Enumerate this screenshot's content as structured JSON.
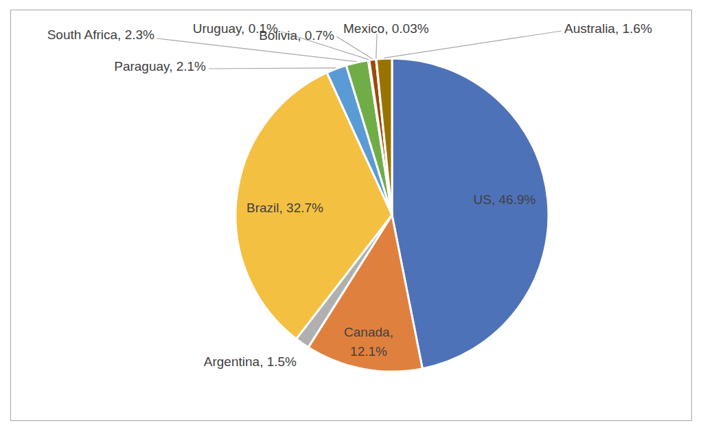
{
  "chart_data": {
    "type": "pie",
    "categories": [
      "US",
      "Canada",
      "Argentina",
      "Brazil",
      "Paraguay",
      "South Africa",
      "Uruguay",
      "Bolivia",
      "Mexico",
      "Australia"
    ],
    "values": [
      46.9,
      12.1,
      1.5,
      32.7,
      2.1,
      2.3,
      0.1,
      0.7,
      0.03,
      1.6
    ],
    "value_labels": [
      "US, 46.9%",
      "Canada, 12.1%",
      "Argentina, 1.5%",
      "Brazil, 32.7%",
      "Paraguay, 2.1%",
      "South Africa, 2.3%",
      "Uruguay, 0.1%",
      "Bolivia, 0.7%",
      "Mexico, 0.03%",
      "Australia, 1.6%"
    ],
    "colors": [
      "#4e72b8",
      "#e0803f",
      "#b0b0b0",
      "#f4c042",
      "#5b9bd5",
      "#70ad47",
      "#264478",
      "#9e480e",
      "#636363",
      "#997300"
    ],
    "data_labels": true
  }
}
